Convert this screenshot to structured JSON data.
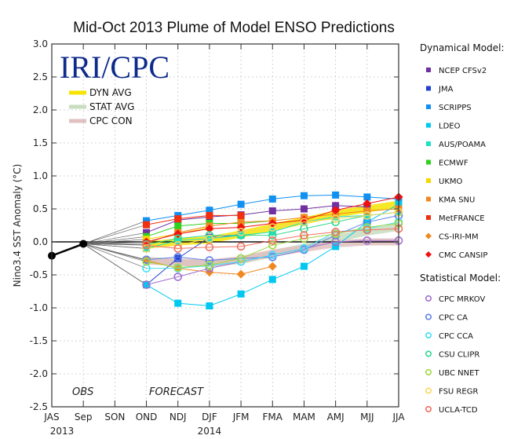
{
  "chart_data": {
    "type": "line",
    "title": "Mid-Oct 2013 Plume of Model ENSO Predictions",
    "xlabel": "",
    "ylabel": "Nino3.4 SST Anomaly (°C)",
    "ylim": [
      -2.5,
      3.0
    ],
    "yticks": [
      "3.0",
      "2.5",
      "2.0",
      "1.5",
      "1.0",
      "0.5",
      "0.0",
      "-0.5",
      "-1.0",
      "-1.5",
      "-2.0",
      "-2.5"
    ],
    "categories": [
      "JAS",
      "Sep",
      "SON",
      "OND",
      "NDJ",
      "DJF",
      "JFM",
      "FMA",
      "MAM",
      "AMJ",
      "MJJ",
      "JJA"
    ],
    "year_labels": [
      {
        "label": "2013",
        "at": "JAS"
      },
      {
        "label": "2014",
        "at": "DJF"
      }
    ],
    "annotations": {
      "obs": "OBS",
      "forecast": "FORECAST"
    },
    "grid": true,
    "logo": "IRI/CPC",
    "observed": {
      "name": "OBS",
      "x": [
        "JAS",
        "Sep"
      ],
      "values": [
        -0.21,
        -0.03
      ],
      "color": "#000000"
    },
    "averages": [
      {
        "name": "DYN AVG",
        "color": "#f5e400",
        "values": [
          null,
          null,
          null,
          -0.05,
          0.0,
          0.03,
          0.12,
          0.22,
          0.32,
          0.42,
          0.5,
          0.57
        ]
      },
      {
        "name": "STAT AVG",
        "color": "#c8dcc0",
        "values": [
          null,
          null,
          null,
          -0.28,
          -0.31,
          -0.33,
          -0.28,
          -0.18,
          -0.08,
          0.05,
          0.15,
          0.22
        ]
      },
      {
        "name": "CPC CON",
        "color": "#e0c0c0",
        "values": [
          null,
          null,
          null,
          -0.29,
          -0.31,
          -0.32,
          -0.27,
          -0.17,
          -0.1,
          -0.03,
          0.0,
          0.0
        ]
      }
    ],
    "legend_dynamical_title": "Dynamical Model:",
    "legend_statistical_title": "Statistical Model:",
    "legend_placement": "right",
    "dynamical": [
      {
        "name": "NCEP CFSv2",
        "color": "#7030a0",
        "marker": "square",
        "values": [
          null,
          null,
          null,
          0.14,
          0.33,
          0.38,
          0.41,
          0.47,
          0.5,
          0.55,
          0.53,
          null
        ]
      },
      {
        "name": "JMA",
        "color": "#2040d0",
        "marker": "square",
        "values": [
          null,
          null,
          null,
          -0.65,
          -0.25,
          0.07,
          0.11,
          null,
          null,
          null,
          null,
          null
        ]
      },
      {
        "name": "SCRIPPS",
        "color": "#1090f0",
        "marker": "square",
        "values": [
          null,
          null,
          null,
          0.32,
          0.4,
          0.48,
          0.57,
          0.65,
          0.7,
          0.71,
          0.68,
          0.65
        ]
      },
      {
        "name": "LDEO",
        "color": "#00c8f0",
        "marker": "square",
        "values": [
          null,
          null,
          null,
          -0.65,
          -0.93,
          -0.97,
          -0.79,
          -0.57,
          -0.37,
          -0.07,
          0.3,
          0.57
        ]
      },
      {
        "name": "AUS/POAMA",
        "color": "#20e0c8",
        "marker": "square",
        "values": [
          null,
          null,
          null,
          -0.1,
          0.02,
          0.05,
          0.1,
          0.15,
          0.3,
          0.38,
          0.4,
          0.45
        ]
      },
      {
        "name": "ECMWF",
        "color": "#30d020",
        "marker": "square",
        "values": [
          null,
          null,
          null,
          0.08,
          0.24,
          0.28,
          0.28,
          0.32,
          null,
          null,
          null,
          null
        ]
      },
      {
        "name": "UKMO",
        "color": "#f5d800",
        "marker": "square",
        "values": [
          null,
          null,
          null,
          0.04,
          0.12,
          0.22,
          null,
          null,
          null,
          null,
          null,
          null
        ]
      },
      {
        "name": "KMA SNU",
        "color": "#f08820",
        "marker": "square",
        "values": [
          null,
          null,
          null,
          -0.02,
          0.14,
          0.24,
          0.3,
          0.32,
          0.37,
          0.42,
          0.47,
          0.5
        ]
      },
      {
        "name": "MetFRANCE",
        "color": "#f03010",
        "marker": "square",
        "values": [
          null,
          null,
          null,
          0.26,
          0.35,
          0.4,
          0.4,
          null,
          null,
          null,
          null,
          null
        ]
      },
      {
        "name": "CS-IRI-MM",
        "color": "#f08820",
        "marker": "diamond",
        "values": [
          null,
          null,
          null,
          -0.28,
          -0.4,
          -0.46,
          -0.49,
          -0.37,
          null,
          null,
          null,
          null
        ]
      },
      {
        "name": "CMC CANSIP",
        "color": "#f01010",
        "marker": "diamond",
        "values": [
          null,
          null,
          null,
          0.0,
          0.12,
          0.2,
          0.22,
          0.28,
          0.33,
          0.48,
          0.58,
          0.68
        ]
      }
    ],
    "statistical": [
      {
        "name": "CPC MRKOV",
        "color": "#a070d0",
        "marker": "circle",
        "values": [
          null,
          null,
          null,
          -0.65,
          -0.53,
          -0.4,
          -0.3,
          -0.2,
          -0.1,
          0.0,
          0.02,
          0.02
        ]
      },
      {
        "name": "CPC CA",
        "color": "#6080e8",
        "marker": "circle",
        "values": [
          null,
          null,
          null,
          -0.27,
          -0.23,
          -0.28,
          -0.25,
          -0.23,
          -0.12,
          0.1,
          0.3,
          0.4
        ]
      },
      {
        "name": "CPC CCA",
        "color": "#40e0f8",
        "marker": "circle",
        "values": [
          null,
          null,
          null,
          -0.4,
          -0.4,
          -0.36,
          -0.3,
          -0.2,
          -0.1,
          0.15,
          0.2,
          0.3
        ]
      },
      {
        "name": "CSU CLIPR",
        "color": "#30d890",
        "marker": "circle",
        "values": [
          null,
          null,
          null,
          -0.04,
          0.05,
          0.1,
          0.1,
          0.1,
          0.2,
          0.3,
          0.4,
          0.45
        ]
      },
      {
        "name": "UBC NNET",
        "color": "#a0d840",
        "marker": "circle",
        "values": [
          null,
          null,
          null,
          -0.3,
          -0.39,
          -0.35,
          -0.25,
          -0.05,
          0.05,
          0.12,
          0.22,
          0.28
        ]
      },
      {
        "name": "FSU REGR",
        "color": "#f8d860",
        "marker": "circle",
        "values": [
          null,
          null,
          null,
          -0.1,
          -0.05,
          0.05,
          0.15,
          0.22,
          0.3,
          0.35,
          0.4,
          0.45
        ]
      },
      {
        "name": "UCLA-TCD",
        "color": "#f07060",
        "marker": "circle",
        "values": [
          null,
          null,
          null,
          -0.05,
          -0.1,
          -0.08,
          -0.07,
          0.02,
          0.1,
          0.15,
          0.18,
          0.2
        ]
      }
    ]
  }
}
